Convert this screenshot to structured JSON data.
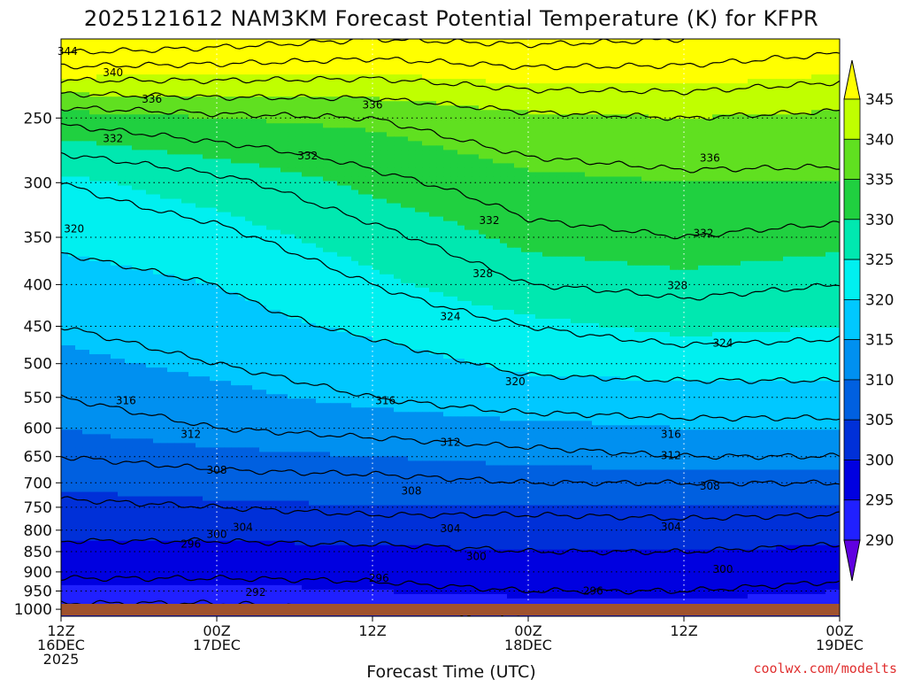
{
  "chart_data": {
    "type": "heatmap",
    "title": "2025121612 NAM3KM Forecast Potential Temperature (K) for KFPR",
    "xlabel": "Forecast Time (UTC)",
    "ylabel": "",
    "y_ticks": [
      "250",
      "300",
      "350",
      "400",
      "450",
      "500",
      "550",
      "600",
      "650",
      "700",
      "750",
      "800",
      "850",
      "900",
      "950",
      "1000"
    ],
    "y_tick_values": [
      250,
      300,
      350,
      400,
      450,
      500,
      550,
      600,
      650,
      700,
      750,
      800,
      850,
      900,
      950,
      1000
    ],
    "x_ticks": [
      {
        "hours": 0,
        "lines": [
          "12Z",
          "16DEC",
          "2025"
        ]
      },
      {
        "hours": 12,
        "lines": [
          "00Z",
          "17DEC"
        ]
      },
      {
        "hours": 24,
        "lines": [
          "12Z"
        ]
      },
      {
        "hours": 36,
        "lines": [
          "00Z",
          "18DEC"
        ]
      },
      {
        "hours": 48,
        "lines": [
          "12Z"
        ]
      },
      {
        "hours": 60,
        "lines": [
          "00Z",
          "19DEC"
        ]
      }
    ],
    "x_range_hours": [
      0,
      60
    ],
    "y_range_hpa": [
      200,
      1020
    ],
    "colorbar": {
      "levels": [
        290,
        295,
        300,
        305,
        310,
        315,
        320,
        325,
        330,
        335,
        340,
        345
      ],
      "labels": [
        "290",
        "295",
        "300",
        "305",
        "310",
        "315",
        "320",
        "325",
        "330",
        "335",
        "340",
        "345"
      ],
      "colors": [
        "#6000e0",
        "#2020ff",
        "#0000e0",
        "#0030d8",
        "#0060e0",
        "#0090f0",
        "#00c8ff",
        "#00f0f0",
        "#00e8b0",
        "#20d040",
        "#60e020",
        "#c0ff00",
        "#ffff00"
      ]
    },
    "contour_step_k": 4,
    "theta_profiles": [
      {
        "hours": 0,
        "theta": [
          [
            200,
            356
          ],
          [
            250,
            333
          ],
          [
            300,
            324
          ],
          [
            350,
            321
          ],
          [
            400,
            318
          ],
          [
            450,
            316
          ],
          [
            500,
            314
          ],
          [
            550,
            312
          ],
          [
            600,
            310
          ],
          [
            650,
            308
          ],
          [
            700,
            306
          ],
          [
            750,
            303
          ],
          [
            800,
            301
          ],
          [
            850,
            299
          ],
          [
            900,
            297
          ],
          [
            950,
            294
          ],
          [
            1000,
            291
          ],
          [
            1020,
            290
          ]
        ]
      },
      {
        "hours": 12,
        "theta": [
          [
            200,
            354
          ],
          [
            250,
            335
          ],
          [
            300,
            327
          ],
          [
            350,
            323
          ],
          [
            400,
            320
          ],
          [
            450,
            318
          ],
          [
            500,
            316
          ],
          [
            550,
            314
          ],
          [
            600,
            312
          ],
          [
            650,
            309
          ],
          [
            700,
            307
          ],
          [
            750,
            304
          ],
          [
            800,
            301
          ],
          [
            850,
            299
          ],
          [
            900,
            297
          ],
          [
            950,
            294
          ],
          [
            1000,
            291
          ],
          [
            1020,
            290
          ]
        ]
      },
      {
        "hours": 24,
        "theta": [
          [
            200,
            352
          ],
          [
            250,
            336
          ],
          [
            300,
            331
          ],
          [
            350,
            327
          ],
          [
            400,
            324
          ],
          [
            450,
            321
          ],
          [
            500,
            318
          ],
          [
            550,
            316
          ],
          [
            600,
            313
          ],
          [
            650,
            310
          ],
          [
            700,
            307
          ],
          [
            750,
            305
          ],
          [
            800,
            302
          ],
          [
            850,
            299
          ],
          [
            900,
            297
          ],
          [
            950,
            295
          ],
          [
            1000,
            292
          ],
          [
            1020,
            291
          ]
        ]
      },
      {
        "hours": 36,
        "theta": [
          [
            200,
            353
          ],
          [
            250,
            339
          ],
          [
            300,
            334
          ],
          [
            350,
            331
          ],
          [
            400,
            328
          ],
          [
            450,
            324
          ],
          [
            500,
            321
          ],
          [
            550,
            318
          ],
          [
            600,
            314
          ],
          [
            650,
            311
          ],
          [
            700,
            308
          ],
          [
            750,
            305
          ],
          [
            800,
            302
          ],
          [
            850,
            300
          ],
          [
            900,
            298
          ],
          [
            950,
            296
          ],
          [
            1000,
            293
          ],
          [
            1020,
            292
          ]
        ]
      },
      {
        "hours": 48,
        "theta": [
          [
            200,
            352
          ],
          [
            250,
            340
          ],
          [
            300,
            335
          ],
          [
            350,
            332
          ],
          [
            400,
            329
          ],
          [
            450,
            326
          ],
          [
            500,
            322
          ],
          [
            550,
            318
          ],
          [
            600,
            315
          ],
          [
            650,
            312
          ],
          [
            700,
            308
          ],
          [
            750,
            305
          ],
          [
            800,
            303
          ],
          [
            850,
            300
          ],
          [
            900,
            298
          ],
          [
            950,
            296
          ],
          [
            1000,
            294
          ],
          [
            1020,
            293
          ]
        ]
      },
      {
        "hours": 60,
        "theta": [
          [
            200,
            350
          ],
          [
            250,
            339
          ],
          [
            300,
            335
          ],
          [
            350,
            331
          ],
          [
            400,
            328
          ],
          [
            450,
            325
          ],
          [
            500,
            322
          ],
          [
            550,
            318
          ],
          [
            600,
            315
          ],
          [
            650,
            312
          ],
          [
            700,
            308
          ],
          [
            750,
            305
          ],
          [
            800,
            302
          ],
          [
            850,
            299
          ],
          [
            900,
            297
          ],
          [
            950,
            295
          ],
          [
            1000,
            293
          ],
          [
            1020,
            292
          ]
        ]
      }
    ],
    "contour_labels": [
      {
        "text": "344",
        "hours": 0.5,
        "hpa": 207
      },
      {
        "text": "340",
        "hours": 4,
        "hpa": 220
      },
      {
        "text": "336",
        "hours": 7,
        "hpa": 237
      },
      {
        "text": "336",
        "hours": 24,
        "hpa": 241
      },
      {
        "text": "336",
        "hours": 50,
        "hpa": 280
      },
      {
        "text": "332",
        "hours": 4,
        "hpa": 265
      },
      {
        "text": "332",
        "hours": 19,
        "hpa": 278
      },
      {
        "text": "332",
        "hours": 33,
        "hpa": 334
      },
      {
        "text": "332",
        "hours": 49.5,
        "hpa": 346
      },
      {
        "text": "328",
        "hours": 32.5,
        "hpa": 388
      },
      {
        "text": "328",
        "hours": 47.5,
        "hpa": 401
      },
      {
        "text": "324",
        "hours": 30,
        "hpa": 438
      },
      {
        "text": "324",
        "hours": 51,
        "hpa": 472
      },
      {
        "text": "320",
        "hours": 1,
        "hpa": 342
      },
      {
        "text": "320",
        "hours": 35,
        "hpa": 526
      },
      {
        "text": "316",
        "hours": 5,
        "hpa": 555
      },
      {
        "text": "316",
        "hours": 25,
        "hpa": 555
      },
      {
        "text": "316",
        "hours": 47,
        "hpa": 610
      },
      {
        "text": "312",
        "hours": 10,
        "hpa": 610
      },
      {
        "text": "312",
        "hours": 30,
        "hpa": 624
      },
      {
        "text": "312",
        "hours": 47,
        "hpa": 648
      },
      {
        "text": "308",
        "hours": 12,
        "hpa": 675
      },
      {
        "text": "308",
        "hours": 27,
        "hpa": 716
      },
      {
        "text": "308",
        "hours": 50,
        "hpa": 706
      },
      {
        "text": "304",
        "hours": 14,
        "hpa": 793
      },
      {
        "text": "304",
        "hours": 30,
        "hpa": 796
      },
      {
        "text": "304",
        "hours": 47,
        "hpa": 792
      },
      {
        "text": "300",
        "hours": 12,
        "hpa": 810
      },
      {
        "text": "300",
        "hours": 32,
        "hpa": 862
      },
      {
        "text": "300",
        "hours": 51,
        "hpa": 893
      },
      {
        "text": "296",
        "hours": 10,
        "hpa": 832
      },
      {
        "text": "296",
        "hours": 24.5,
        "hpa": 916
      },
      {
        "text": "296",
        "hours": 41,
        "hpa": 950
      },
      {
        "text": "292",
        "hours": 15,
        "hpa": 953
      }
    ]
  },
  "watermark": "coolwx.com/modelts",
  "ground_color": "#a0522d"
}
